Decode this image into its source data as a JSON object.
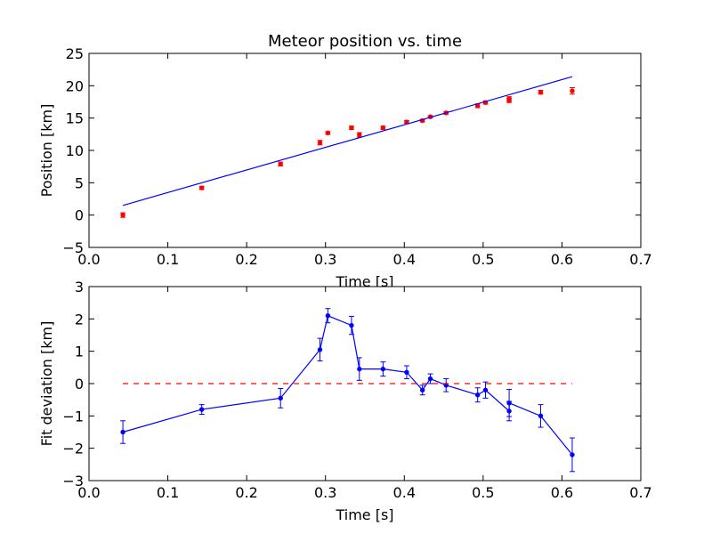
{
  "chart_data": [
    {
      "type": "scatter",
      "title": "Meteor position vs. time",
      "xlabel": "Time [s]",
      "ylabel": "Position [km]",
      "xlim": [
        0.0,
        0.7
      ],
      "ylim": [
        -5,
        25
      ],
      "x_ticks": [
        "0.0",
        "0.1",
        "0.2",
        "0.3",
        "0.4",
        "0.5",
        "0.6",
        "0.7"
      ],
      "y_ticks": [
        "−5",
        "0",
        "5",
        "10",
        "15",
        "20",
        "25"
      ],
      "grid": false,
      "series": [
        {
          "kind": "errorbar-points",
          "color": "#ff0000",
          "x": [
            0.043,
            0.143,
            0.243,
            0.293,
            0.303,
            0.333,
            0.343,
            0.373,
            0.403,
            0.423,
            0.433,
            0.453,
            0.493,
            0.503,
            0.533,
            0.533,
            0.573,
            0.613
          ],
          "y": [
            0.0,
            4.2,
            7.9,
            11.2,
            12.7,
            13.5,
            12.4,
            13.5,
            14.4,
            14.6,
            15.2,
            15.8,
            16.9,
            17.4,
            18.0,
            17.7,
            19.0,
            19.2
          ],
          "yerr": [
            0.35,
            0.25,
            0.3,
            0.35,
            0.2,
            0.25,
            0.35,
            0.25,
            0.2,
            0.2,
            0.15,
            0.2,
            0.3,
            0.25,
            0.3,
            0.3,
            0.3,
            0.5
          ]
        },
        {
          "kind": "fit-line",
          "color": "#0000ff",
          "x": [
            0.043,
            0.613
          ],
          "y": [
            1.5,
            21.4
          ]
        }
      ]
    },
    {
      "type": "line",
      "title": "",
      "xlabel": "Time [s]",
      "ylabel": "Fit deviation [km]",
      "xlim": [
        0.0,
        0.7
      ],
      "ylim": [
        -3,
        3
      ],
      "x_ticks": [
        "0.0",
        "0.1",
        "0.2",
        "0.3",
        "0.4",
        "0.5",
        "0.6",
        "0.7"
      ],
      "y_ticks": [
        "−3",
        "−2",
        "−1",
        "0",
        "1",
        "2",
        "3"
      ],
      "grid": false,
      "series": [
        {
          "kind": "errorbar-line",
          "color": "#0000ff",
          "x": [
            0.043,
            0.143,
            0.243,
            0.293,
            0.303,
            0.333,
            0.343,
            0.373,
            0.403,
            0.423,
            0.433,
            0.453,
            0.493,
            0.503,
            0.533,
            0.533,
            0.573,
            0.613
          ],
          "y": [
            -1.5,
            -0.8,
            -0.45,
            1.05,
            2.1,
            1.8,
            0.45,
            0.45,
            0.35,
            -0.2,
            0.15,
            -0.05,
            -0.35,
            -0.2,
            -0.85,
            -0.6,
            -1.0,
            -2.2
          ],
          "yerr": [
            0.35,
            0.15,
            0.3,
            0.35,
            0.22,
            0.28,
            0.35,
            0.22,
            0.2,
            0.15,
            0.15,
            0.2,
            0.22,
            0.25,
            0.3,
            0.42,
            0.35,
            0.52
          ]
        },
        {
          "kind": "zero-line",
          "color": "#ff0000",
          "dashed": true,
          "x": [
            0.043,
            0.613
          ],
          "y": [
            0,
            0
          ]
        }
      ]
    }
  ]
}
